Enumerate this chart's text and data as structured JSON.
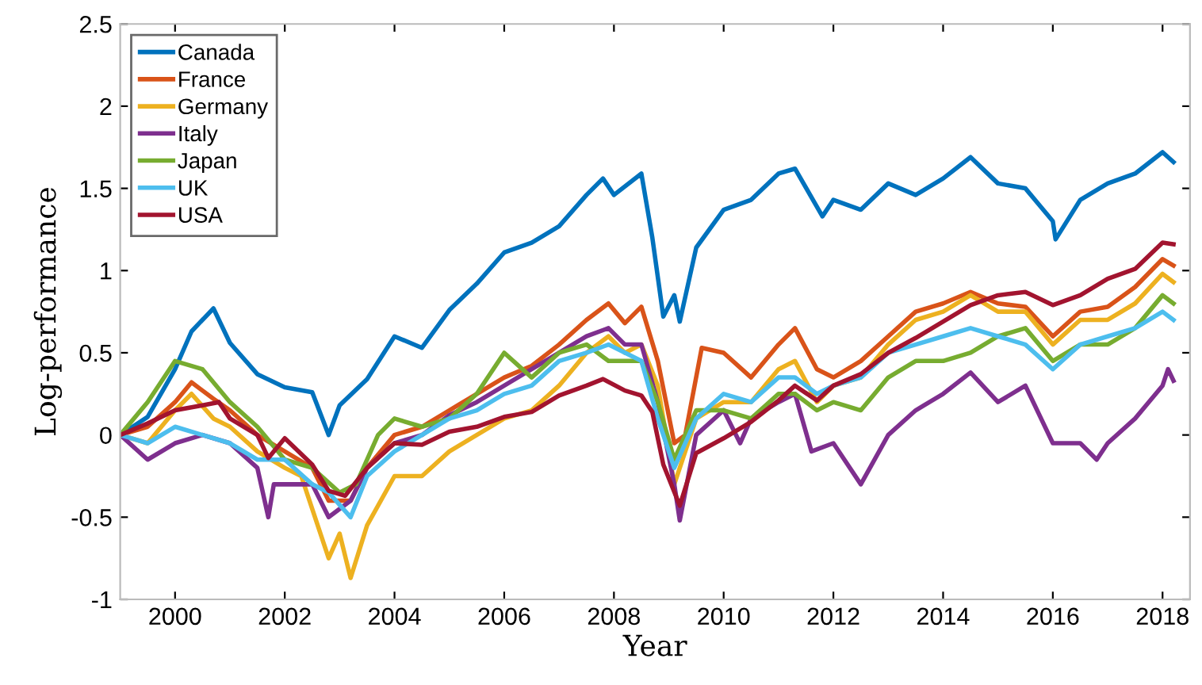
{
  "chart_data": {
    "type": "line",
    "xlabel": "Year",
    "ylabel": "Log-performance",
    "xlim": [
      1999,
      2018.5
    ],
    "xticks": [
      2000,
      2002,
      2004,
      2006,
      2008,
      2010,
      2012,
      2014,
      2016,
      2018
    ],
    "ylim": [
      -1,
      2.5
    ],
    "yticks": [
      -1,
      -0.5,
      0,
      0.5,
      1,
      1.5,
      2,
      2.5
    ],
    "grid": false,
    "legend": "top left",
    "line_style": "solid",
    "marker": "none",
    "series": [
      {
        "name": "Canada",
        "color": "#0072bd",
        "x": [
          1999,
          1999.5,
          2000,
          2000.3,
          2000.7,
          2001,
          2001.5,
          2002,
          2002.5,
          2002.8,
          2003,
          2003.5,
          2004,
          2004.5,
          2005,
          2005.5,
          2006,
          2006.5,
          2007,
          2007.5,
          2007.8,
          2008,
          2008.5,
          2008.7,
          2008.9,
          2009.1,
          2009.2,
          2009.5,
          2010,
          2010.5,
          2011,
          2011.3,
          2011.8,
          2012,
          2012.5,
          2013,
          2013.5,
          2014,
          2014.5,
          2015,
          2015.5,
          2016,
          2016.05,
          2016.5,
          2017,
          2017.5,
          2018,
          2018.2
        ],
        "values": [
          0.0,
          0.11,
          0.4,
          0.63,
          0.77,
          0.56,
          0.37,
          0.29,
          0.26,
          0.0,
          0.18,
          0.34,
          0.6,
          0.53,
          0.76,
          0.92,
          1.11,
          1.17,
          1.27,
          1.46,
          1.56,
          1.46,
          1.59,
          1.2,
          0.72,
          0.85,
          0.69,
          1.14,
          1.37,
          1.43,
          1.59,
          1.62,
          1.33,
          1.43,
          1.37,
          1.53,
          1.46,
          1.56,
          1.69,
          1.53,
          1.5,
          1.3,
          1.19,
          1.43,
          1.53,
          1.59,
          1.72,
          1.66
        ]
      },
      {
        "name": "France",
        "color": "#d95319",
        "x": [
          1999,
          1999.5,
          2000,
          2000.3,
          2000.7,
          2001,
          2001.5,
          2002,
          2002.5,
          2002.8,
          2003.2,
          2003.5,
          2004,
          2004.5,
          2005,
          2005.5,
          2006,
          2006.5,
          2007,
          2007.5,
          2007.9,
          2008.2,
          2008.5,
          2008.8,
          2009.1,
          2009.3,
          2009.6,
          2010,
          2010.5,
          2011,
          2011.3,
          2011.7,
          2012,
          2012.5,
          2013,
          2013.5,
          2014,
          2014.5,
          2015,
          2015.5,
          2016,
          2016.5,
          2017,
          2017.5,
          2018,
          2018.2
        ],
        "values": [
          0.0,
          0.05,
          0.2,
          0.32,
          0.22,
          0.15,
          0.0,
          -0.1,
          -0.2,
          -0.4,
          -0.4,
          -0.2,
          0.0,
          0.05,
          0.15,
          0.25,
          0.35,
          0.42,
          0.55,
          0.7,
          0.8,
          0.68,
          0.78,
          0.45,
          -0.05,
          0.0,
          0.53,
          0.5,
          0.35,
          0.55,
          0.65,
          0.4,
          0.35,
          0.45,
          0.6,
          0.75,
          0.8,
          0.87,
          0.8,
          0.78,
          0.6,
          0.75,
          0.78,
          0.9,
          1.07,
          1.03
        ]
      },
      {
        "name": "Germany",
        "color": "#edb120",
        "x": [
          1999,
          1999.5,
          2000,
          2000.3,
          2000.7,
          2001,
          2001.5,
          2002,
          2002.3,
          2002.5,
          2002.8,
          2003.0,
          2003.2,
          2003.5,
          2004,
          2004.5,
          2005,
          2005.5,
          2006,
          2006.5,
          2007,
          2007.5,
          2007.9,
          2008.2,
          2008.5,
          2008.8,
          2009.1,
          2009.5,
          2010,
          2010.5,
          2011,
          2011.3,
          2011.7,
          2012,
          2012.5,
          2013,
          2013.5,
          2014,
          2014.5,
          2015,
          2015.5,
          2016,
          2016.5,
          2017,
          2017.5,
          2018,
          2018.2
        ],
        "values": [
          0.0,
          -0.05,
          0.15,
          0.25,
          0.1,
          0.05,
          -0.1,
          -0.2,
          -0.25,
          -0.45,
          -0.75,
          -0.6,
          -0.87,
          -0.55,
          -0.25,
          -0.25,
          -0.1,
          0.0,
          0.1,
          0.15,
          0.3,
          0.5,
          0.6,
          0.5,
          0.55,
          0.3,
          -0.3,
          0.1,
          0.2,
          0.2,
          0.4,
          0.45,
          0.2,
          0.3,
          0.35,
          0.55,
          0.7,
          0.75,
          0.85,
          0.75,
          0.75,
          0.55,
          0.7,
          0.7,
          0.8,
          0.98,
          0.93
        ]
      },
      {
        "name": "Italy",
        "color": "#7e2f8e",
        "x": [
          1999,
          1999.5,
          2000,
          2000.5,
          2001,
          2001.5,
          2001.7,
          2001.8,
          2002,
          2002.5,
          2002.8,
          2003.2,
          2003.5,
          2004,
          2004.5,
          2005,
          2005.5,
          2006,
          2006.5,
          2007,
          2007.5,
          2007.9,
          2008.2,
          2008.5,
          2008.8,
          2009.1,
          2009.2,
          2009.5,
          2010,
          2010.3,
          2010.5,
          2011,
          2011.3,
          2011.6,
          2012,
          2012.5,
          2013,
          2013.5,
          2014,
          2014.5,
          2015,
          2015.5,
          2016,
          2016.5,
          2016.8,
          2017,
          2017.5,
          2018,
          2018.1,
          2018.2
        ],
        "values": [
          0.0,
          -0.15,
          -0.05,
          0.0,
          -0.05,
          -0.2,
          -0.5,
          -0.3,
          -0.3,
          -0.3,
          -0.5,
          -0.4,
          -0.2,
          -0.05,
          0.0,
          0.12,
          0.2,
          0.3,
          0.4,
          0.5,
          0.6,
          0.65,
          0.55,
          0.55,
          0.2,
          -0.3,
          -0.52,
          0.0,
          0.15,
          -0.05,
          0.1,
          0.2,
          0.25,
          -0.1,
          -0.05,
          -0.3,
          0.0,
          0.15,
          0.25,
          0.38,
          0.2,
          0.3,
          -0.05,
          -0.05,
          -0.15,
          -0.05,
          0.1,
          0.3,
          0.4,
          0.33
        ]
      },
      {
        "name": "Japan",
        "color": "#77ac30",
        "x": [
          1999,
          1999.5,
          2000,
          2000.5,
          2001,
          2001.5,
          2002,
          2002.5,
          2003.0,
          2003.3,
          2003.7,
          2004,
          2004.5,
          2005,
          2005.5,
          2006,
          2006.5,
          2007,
          2007.5,
          2007.9,
          2008.5,
          2008.8,
          2009.1,
          2009.5,
          2010,
          2010.5,
          2011,
          2011.3,
          2011.7,
          2012,
          2012.5,
          2013,
          2013.5,
          2014,
          2014.5,
          2015,
          2015.5,
          2016,
          2016.5,
          2017,
          2017.5,
          2018,
          2018.2
        ],
        "values": [
          0.0,
          0.2,
          0.45,
          0.4,
          0.2,
          0.05,
          -0.15,
          -0.2,
          -0.35,
          -0.3,
          0.0,
          0.1,
          0.05,
          0.1,
          0.25,
          0.5,
          0.35,
          0.5,
          0.55,
          0.45,
          0.45,
          0.2,
          -0.15,
          0.15,
          0.15,
          0.1,
          0.25,
          0.25,
          0.15,
          0.2,
          0.15,
          0.35,
          0.45,
          0.45,
          0.5,
          0.6,
          0.65,
          0.45,
          0.55,
          0.55,
          0.65,
          0.85,
          0.8
        ]
      },
      {
        "name": "UK",
        "color": "#4dbeee",
        "x": [
          1999,
          1999.5,
          2000,
          2000.5,
          2001,
          2001.5,
          2002,
          2002.5,
          2002.8,
          2003.2,
          2003.5,
          2004,
          2004.5,
          2005,
          2005.5,
          2006,
          2006.5,
          2007,
          2007.5,
          2007.9,
          2008.5,
          2008.8,
          2009.1,
          2009.5,
          2010,
          2010.5,
          2011,
          2011.3,
          2011.7,
          2012,
          2012.5,
          2013,
          2013.5,
          2014,
          2014.5,
          2015,
          2015.5,
          2016,
          2016.5,
          2017,
          2017.5,
          2018,
          2018.2
        ],
        "values": [
          0.0,
          -0.05,
          0.05,
          0.0,
          -0.05,
          -0.15,
          -0.15,
          -0.3,
          -0.35,
          -0.5,
          -0.25,
          -0.1,
          0.0,
          0.1,
          0.15,
          0.25,
          0.3,
          0.45,
          0.5,
          0.55,
          0.45,
          0.1,
          -0.2,
          0.1,
          0.25,
          0.2,
          0.35,
          0.35,
          0.25,
          0.3,
          0.35,
          0.5,
          0.55,
          0.6,
          0.65,
          0.6,
          0.55,
          0.4,
          0.55,
          0.6,
          0.65,
          0.75,
          0.7
        ]
      },
      {
        "name": "USA",
        "color": "#a2142f",
        "x": [
          1999,
          1999.5,
          2000,
          2000.5,
          2000.8,
          2001,
          2001.5,
          2001.7,
          2002,
          2002.5,
          2002.8,
          2003.1,
          2003.5,
          2004,
          2004.5,
          2005,
          2005.5,
          2006,
          2006.5,
          2007,
          2007.5,
          2007.8,
          2008.2,
          2008.5,
          2008.7,
          2008.9,
          2009.2,
          2009.5,
          2010,
          2010.5,
          2011,
          2011.3,
          2011.7,
          2012,
          2012.5,
          2013,
          2013.5,
          2014,
          2014.5,
          2015,
          2015.5,
          2016,
          2016.5,
          2017,
          2017.5,
          2018,
          2018.2
        ],
        "values": [
          0.0,
          0.07,
          0.15,
          0.18,
          0.2,
          0.1,
          0.0,
          -0.14,
          -0.02,
          -0.18,
          -0.34,
          -0.37,
          -0.2,
          -0.05,
          -0.06,
          0.02,
          0.05,
          0.11,
          0.14,
          0.24,
          0.3,
          0.34,
          0.27,
          0.24,
          0.14,
          -0.18,
          -0.43,
          -0.11,
          -0.02,
          0.08,
          0.21,
          0.3,
          0.21,
          0.3,
          0.37,
          0.5,
          0.59,
          0.69,
          0.79,
          0.85,
          0.87,
          0.79,
          0.85,
          0.95,
          1.01,
          1.17,
          1.16
        ]
      }
    ]
  }
}
